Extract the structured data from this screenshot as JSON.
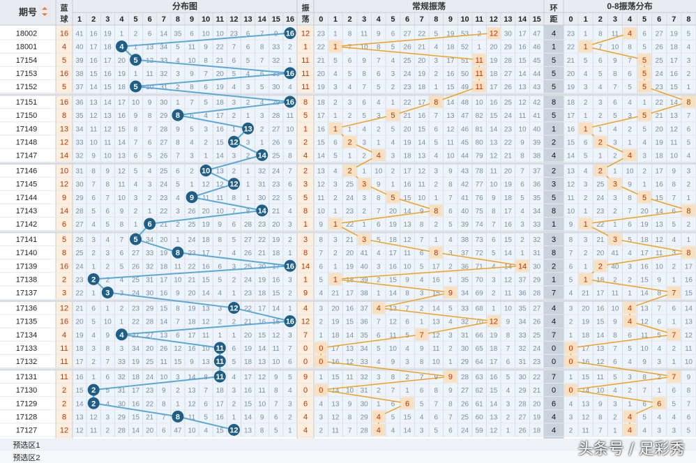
{
  "headers": {
    "period": "期号",
    "blue_ball": "蓝球",
    "distribution": "分布图",
    "swing": "振荡",
    "regular_swing": "常规振荡",
    "ring_distance": "环距",
    "swing_08": "0-8振荡分布"
  },
  "columns_1_16": [
    "1",
    "2",
    "3",
    "4",
    "5",
    "6",
    "7",
    "8",
    "9",
    "10",
    "11",
    "12",
    "13",
    "14",
    "15",
    "16"
  ],
  "columns_0_15": [
    "0",
    "1",
    "2",
    "3",
    "4",
    "5",
    "6",
    "7",
    "8",
    "9",
    "10",
    "11",
    "12",
    "13",
    "14",
    "15"
  ],
  "columns_0_8": [
    "0",
    "1",
    "2",
    "3",
    "4",
    "5",
    "6",
    "7",
    "8"
  ],
  "rows": [
    {
      "period": "18002",
      "blue": 16,
      "swing": 12,
      "ring": 4
    },
    {
      "period": "18001",
      "blue": 4,
      "swing": 1,
      "ring": 1
    },
    {
      "period": "17154",
      "blue": 5,
      "swing": 11,
      "ring": 5
    },
    {
      "period": "17153",
      "blue": 16,
      "swing": 11,
      "ring": 5
    },
    {
      "period": "17152",
      "blue": 5,
      "swing": 11,
      "ring": 5
    },
    {
      "period": "17151",
      "blue": 16,
      "swing": 8,
      "ring": 8
    },
    {
      "period": "17150",
      "blue": 8,
      "swing": 5,
      "ring": 5
    },
    {
      "period": "17149",
      "blue": 13,
      "swing": 1,
      "ring": 1
    },
    {
      "period": "17148",
      "blue": 12,
      "swing": 2,
      "ring": 2
    },
    {
      "period": "17147",
      "blue": 14,
      "swing": 4,
      "ring": 4
    },
    {
      "period": "17146",
      "blue": 10,
      "swing": 2,
      "ring": 2
    },
    {
      "period": "17145",
      "blue": 12,
      "swing": 3,
      "ring": 3
    },
    {
      "period": "17144",
      "blue": 9,
      "swing": 5,
      "ring": 5
    },
    {
      "period": "17143",
      "blue": 14,
      "swing": 8,
      "ring": 8
    },
    {
      "period": "17142",
      "blue": 6,
      "swing": 1,
      "ring": 1
    },
    {
      "period": "17141",
      "blue": 5,
      "swing": 3,
      "ring": 3
    },
    {
      "period": "17140",
      "blue": 8,
      "swing": 8,
      "ring": 8
    },
    {
      "period": "17139",
      "blue": 16,
      "swing": 14,
      "ring": 2
    },
    {
      "period": "17138",
      "blue": 2,
      "swing": 1,
      "ring": 1
    },
    {
      "period": "17137",
      "blue": 3,
      "swing": 9,
      "ring": 7
    },
    {
      "period": "17136",
      "blue": 12,
      "swing": 4,
      "ring": 4
    },
    {
      "period": "17135",
      "blue": 16,
      "swing": 12,
      "ring": 4
    },
    {
      "period": "17134",
      "blue": 4,
      "swing": 7,
      "ring": 7
    },
    {
      "period": "17133",
      "blue": 11,
      "swing": 0,
      "ring": 0
    },
    {
      "period": "17132",
      "blue": 11,
      "swing": 0,
      "ring": 0
    },
    {
      "period": "17131",
      "blue": 11,
      "swing": 9,
      "ring": 7
    },
    {
      "period": "17130",
      "blue": 2,
      "swing": 0,
      "ring": 0
    },
    {
      "period": "17129",
      "blue": 2,
      "swing": 6,
      "ring": 6
    },
    {
      "period": "17128",
      "blue": 8,
      "swing": 4,
      "ring": 4
    },
    {
      "period": "17127",
      "blue": 12,
      "swing": 4,
      "ring": 4
    }
  ],
  "dist_rows": [
    "41 16 19 1 2 6 14 35 6 10 10 23 6 7 9 34",
    "40 17 18 2 1 13 34 5 11 9 22 7 6 8 33 2",
    "39 16 17 20 5 12 33 4 10 8 21 6 5 7 32 1",
    "38 15 16 19 1 11 32 3 9 7 20 5 4 6 31 5",
    "37 14 15 18 4 10 31 2 8 6 19 4 3 5 30 4",
    "36 13 14 17 10 9 30 1 7 5 18 3 2 4 29 3",
    "35 12 13 16 9 8 29 2 6 4 17 2 1 3 28 11",
    "34 11 12 15 8 7 28 9 5 3 16 1 4 2 27 10",
    "33 10 11 14 7 6 27 8 4 2 15 4 3 1 26 9",
    "32 9 10 13 6 5 26 7 3 1 14 3 2 6 25 8",
    "31 8 9 12 5 4 25 6 2 13 13 2 1 32 24 7",
    "30 7 8 11 4 3 24 5 1 12 12 3 1 31 23 6",
    "29 6 7 10 3 2 23 4 1 11 11 8 1 30 22 5",
    "28 5 6 9 2 1 22 3 26 20 10 7 8 17 21 4",
    "27 4 5 8 1 3 21 2 25 19 9 6 28 23 20 3",
    "26 3 4 7 2 34 20 1 24 18 8 5 27 22 19 2",
    "25 2 3 6 27 33 19 6 23 17 7 4 26 21 18 1",
    "24 1 2 5 26 32 18 11 22 16 6 3 25 20 17 2",
    "23 11 2 4 25 31 17 10 21 15 5 2 24 19 16 3",
    "22 1 8 3 24 30 16 9 20 14 4 1 23 18 15 2",
    "21 6 1 2 23 29 15 8 19 13 3 3 22 17 14 1",
    "20 5 10 1 22 28 14 7 18 12 2 2 21 16 15 4",
    "19 4 9 2 21 27 13 6 17 11 1 1 20 15 12 3",
    "18 3 8 3 34 20 26 12 16 10 14 6 19 14 11 7",
    "17 2 7 33 19 25 11 15 9 13 14 5 18 13 10 6",
    "16 1 6 32 18 24 10 3 14 8 12 4 17 12 9 5",
    "15 3 5 31 17 23 9 2 13 7 18 3 16 11 8 4",
    "14 2 4 30 16 22 8 1 12 6 17 2 15 10 7 3",
    "13 12 3 29 15 21 7 6 11 5 16 1 14 9 6 2",
    "12 11 2 28 14 20 6 47 10 4 15 6 13 8 5 1"
  ],
  "swing_rows": [
    "23 1 8 11 9 6 27 22 5 19 53 2 12 30 17 47",
    "22 2 7 10 8 5 26 21 4 18 52 1 20 29 16 46",
    "21 5 6 9 7 4 25 20 3 17 51 11 19 28 15 45",
    "20 4 5 8 6 3 24 19 2 16 50 11 18 27 14 44",
    "19 3 4 7 5 2 23 18 1 15 49 11 17 26 13 43",
    "18 2 3 6 4 1 22 17 8 14 48 10 16 25 12 42",
    "17 1 2 5 3 5 21 16 7 13 47 82 15 24 11 41",
    "16 1 1 4 2 5 20 15 6 12 46 81 14 23 10 40",
    "15 6 2 3 1 4 19 14 5 11 45 80 13 22 9 39",
    "14 5 1 2 4 3 18 13 4 10 44 79 12 21 8 38",
    "13 4 2 1 10 2 17 12 3 9 43 78 11 20 7 37",
    "12 3 25 3 9 1 16 11 2 8 42 77 10 19 6 36",
    "11 2 24 3 8 5 15 10 1 7 41 76 9 18 5 35",
    "10 1 23 2 7 20 14 9 8 6 40 75 8 17 4 34",
    "9 1 22 1 6 19 13 8 2 5 39 74 7 16 3 33",
    "8 3 21 3 5 18 12 7 1 4 38 73 6 15 2 32",
    "7 2 20 41 4 17 11 6 8 3 37 72 5 14 1 31",
    "6 1 19 40 3 16 10 5 17 2 36 71 4 14 10 30",
    "5 1 18 39 2 15 9 4 16 1 35 70 3 12 37 29",
    "4 21 17 38 1 14 8 3 15 9 34 69 2 11 36 28",
    "3 20 16 37 4 13 7 2 14 5 33 68 1 10 35 27",
    "2 19 15 36 7 12 6 1 13 4 32 70 12 9 34 26",
    "1 18 14 35 6 11 5 7 12 3 31 66 19 8 33 25",
    "0 17 13 34 5 10 4 9 11 2 30 65 18 7 32 24",
    "0 16 12 33 4 9 3 8 10 1 29 64 17 6 31 23",
    "1 15 11 32 3 8 2 7 9 9 28 63 16 5 30 22",
    "0 14 10 31 2 7 1 6 8 9 27 62 15 4 29 21",
    "4 13 9 30 1 6 5 5 7 8 26 61 14 3 28 20",
    "3 12 8 29 4 5 15 4 6 7 25 60 13 2 27 19",
    "2 11 7 28 4 4 14 3 5 6 24 59 12 1 26 18"
  ],
  "ring_rows": [
    "23 1 8 11 4 6 27 19 5",
    "22 1 7 10 8 5 26 18 4",
    "21 5 6 9 7 5 25 17 3",
    "20 4 5 8 6 5 24 16 2",
    "19 3 4 7 5 5 23 15 1",
    "18 2 3 6 4 1 22 14 8",
    "17 1 2 5 3 5 21 13 7",
    "16 1 1 4 2 5 20 12 6",
    "15 6 2 3 1 4 19 11 5",
    "14 5 1 2 4 3 18 10 4",
    "13 4 2 1 10 2 17 9 3",
    "12 3 25 3 9 1 16 8 2",
    "11 2 24 3 8 5 15 7 1",
    "10 1 23 2 7 20 14 6 8",
    "9 1 22 1 6 19 13 5 2",
    "8 3 21 3 5 18 12 4 1",
    "7 2 20 41 4 17 11 3 8",
    "6 1 2 40 3 16 10 2 17",
    "5 1 18 2 2 15 9 1 16",
    "4 21 17 11 1 14 8 7 15",
    "3 20 16 10 4 13 7 6 14",
    "2 19 15 9 4 12 6 1 13",
    "1 18 14 8 6 11 5 7 12",
    "0 17 13 7 5 10 4 2 11",
    "0 16 12 6 4 9 3 1 10",
    "1 15 11 5 3 8 2 7 9",
    "0 14 10 4 2 7 1 6 8",
    "4 13 9 3 1 6 5 5 7",
    "3 12 8 2 4 5 4 4 6",
    "2 11 7 1 4 4 3 3 5"
  ],
  "pre_select": [
    "预选区1",
    "预选区2"
  ],
  "watermark": "头条号 / 足彩秀",
  "colors": {
    "ball": "#1f5f86",
    "ball_line": "#5ba8d6",
    "swing_line": "#f0a020",
    "blue_cell": "#f9e0c0",
    "swing_cell": "#f9e0c0",
    "ring_cell": "#b8c4d0",
    "header_bg": "#e8ecf0",
    "grid_bg": "#eef4fb"
  }
}
